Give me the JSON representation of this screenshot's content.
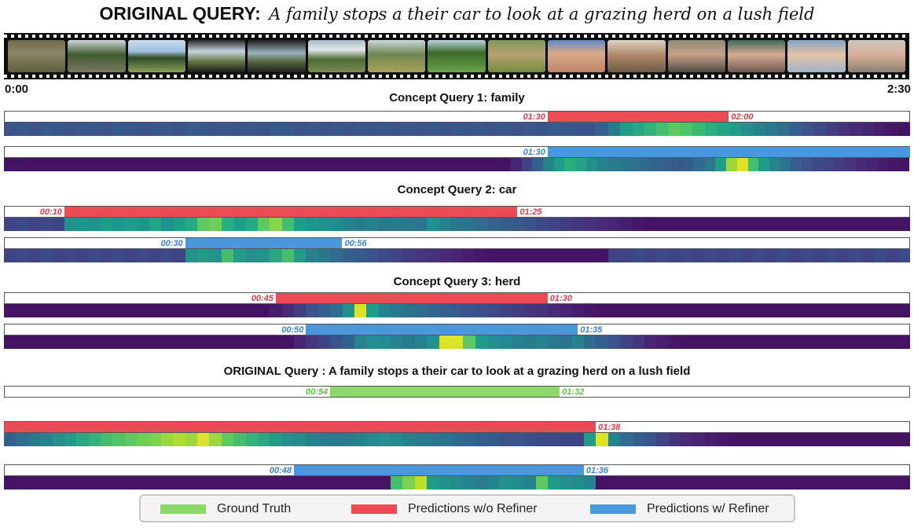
{
  "header": {
    "label": "ORIGINAL QUERY:",
    "query": "A family stops a their car to look at a grazing herd on a lush field",
    "start_time": "0:00",
    "end_time": "2:30"
  },
  "filmstrip": {
    "frames": [
      {
        "scene": "zoo-gate"
      },
      {
        "scene": "trees-road"
      },
      {
        "scene": "grazing-field"
      },
      {
        "scene": "car-interior"
      },
      {
        "scene": "car-window"
      },
      {
        "scene": "window-view"
      },
      {
        "scene": "field-animals"
      },
      {
        "scene": "park-trees"
      },
      {
        "scene": "giraffe-field"
      },
      {
        "scene": "boy-closeup"
      },
      {
        "scene": "family-table"
      },
      {
        "scene": "child-eating"
      },
      {
        "scene": "girl-eating"
      },
      {
        "scene": "boy-outdoors"
      },
      {
        "scene": "child-face"
      }
    ]
  },
  "colors": {
    "ground_truth": "#8cd86a",
    "pred_wo_refiner": "#eb4b55",
    "pred_w_refiner": "#4b97dd",
    "gt_text": "#5fbf3f",
    "wo_text": "#e03a44",
    "w_text": "#3b82d0"
  },
  "sections": [
    {
      "title": "Concept Query 1: family",
      "rows": [
        {
          "kind": "wo",
          "start": "01:30",
          "end": "02:00",
          "start_label": "01:30",
          "end_label": "02:00",
          "heat": [
            0.25,
            0.27,
            0.26,
            0.28,
            0.27,
            0.26,
            0.27,
            0.27,
            0.26,
            0.28,
            0.27,
            0.26,
            0.27,
            0.27,
            0.26,
            0.28,
            0.27,
            0.26,
            0.27,
            0.26,
            0.27,
            0.26,
            0.28,
            0.27,
            0.26,
            0.27,
            0.26,
            0.27,
            0.26,
            0.27,
            0.26,
            0.27,
            0.26,
            0.27,
            0.26,
            0.27,
            0.26,
            0.27,
            0.26,
            0.27,
            0.26,
            0.27,
            0.26,
            0.27,
            0.26,
            0.28,
            0.27,
            0.26,
            0.25,
            0.3,
            0.42,
            0.55,
            0.6,
            0.65,
            0.7,
            0.75,
            0.72,
            0.68,
            0.62,
            0.58,
            0.55,
            0.5,
            0.45,
            0.4,
            0.35,
            0.3,
            0.25,
            0.22,
            0.18,
            0.15,
            0.12,
            0.1,
            0.08,
            0.06,
            0.05
          ]
        },
        {
          "kind": "w",
          "start": "01:30",
          "end": "02:30",
          "start_label": "01:30",
          "heat": [
            0.05,
            0.05,
            0.05,
            0.05,
            0.05,
            0.05,
            0.05,
            0.05,
            0.05,
            0.05,
            0.05,
            0.05,
            0.05,
            0.05,
            0.05,
            0.05,
            0.05,
            0.05,
            0.05,
            0.05,
            0.05,
            0.05,
            0.05,
            0.05,
            0.05,
            0.05,
            0.05,
            0.05,
            0.05,
            0.05,
            0.05,
            0.05,
            0.05,
            0.05,
            0.05,
            0.05,
            0.05,
            0.05,
            0.05,
            0.05,
            0.05,
            0.05,
            0.05,
            0.05,
            0.05,
            0.05,
            0.05,
            0.1,
            0.2,
            0.3,
            0.45,
            0.55,
            0.62,
            0.58,
            0.5,
            0.45,
            0.42,
            0.4,
            0.38,
            0.35,
            0.32,
            0.3,
            0.28,
            0.3,
            0.35,
            0.4,
            0.55,
            0.85,
            0.95,
            0.7,
            0.55,
            0.45,
            0.38,
            0.3,
            0.25,
            0.22,
            0.2,
            0.18,
            0.15,
            0.12,
            0.1,
            0.08,
            0.06,
            0.05
          ]
        }
      ]
    },
    {
      "title": "Concept Query 2: car",
      "rows": [
        {
          "kind": "wo",
          "start": "00:10",
          "end": "01:25",
          "start_label": "00:10",
          "end_label": "01:25",
          "heat": [
            0.2,
            0.22,
            0.2,
            0.22,
            0.2,
            0.5,
            0.52,
            0.5,
            0.55,
            0.52,
            0.55,
            0.52,
            0.58,
            0.5,
            0.55,
            0.6,
            0.75,
            0.78,
            0.62,
            0.55,
            0.6,
            0.75,
            0.82,
            0.7,
            0.55,
            0.52,
            0.5,
            0.48,
            0.45,
            0.42,
            0.45,
            0.4,
            0.42,
            0.4,
            0.38,
            0.5,
            0.45,
            0.4,
            0.38,
            0.35,
            0.32,
            0.3,
            0.28,
            0.25,
            0.22,
            0.2,
            0.18,
            0.16,
            0.14,
            0.12,
            0.1,
            0.08,
            0.06,
            0.05,
            0.05,
            0.05,
            0.05,
            0.05,
            0.05,
            0.05,
            0.05,
            0.05,
            0.05,
            0.05,
            0.05,
            0.05,
            0.05,
            0.05,
            0.05,
            0.05,
            0.05,
            0.05,
            0.05,
            0.05,
            0.05
          ]
        },
        {
          "kind": "w",
          "start": "00:30",
          "end": "00:56",
          "start_label": "00:30",
          "end_label": "00:56",
          "heat": [
            0.2,
            0.22,
            0.2,
            0.22,
            0.2,
            0.22,
            0.2,
            0.22,
            0.2,
            0.22,
            0.2,
            0.22,
            0.2,
            0.22,
            0.2,
            0.5,
            0.55,
            0.52,
            0.7,
            0.55,
            0.5,
            0.52,
            0.6,
            0.7,
            0.55,
            0.45,
            0.4,
            0.35,
            0.3,
            0.28,
            0.25,
            0.22,
            0.2,
            0.18,
            0.16,
            0.14,
            0.12,
            0.1,
            0.08,
            0.06,
            0.05,
            0.05,
            0.05,
            0.05,
            0.05,
            0.05,
            0.05,
            0.05,
            0.05,
            0.05,
            0.2,
            0.2,
            0.22,
            0.2,
            0.22,
            0.2,
            0.22,
            0.2,
            0.22,
            0.2,
            0.22,
            0.2,
            0.22,
            0.2,
            0.22,
            0.2,
            0.22,
            0.2,
            0.22,
            0.2,
            0.22,
            0.2,
            0.22,
            0.2,
            0.22
          ]
        }
      ]
    },
    {
      "title": "Concept Query 3: herd",
      "rows": [
        {
          "kind": "wo",
          "start": "00:45",
          "end": "01:30",
          "start_label": "00:45",
          "end_label": "01:30",
          "heat": [
            0.05,
            0.05,
            0.05,
            0.05,
            0.05,
            0.05,
            0.05,
            0.05,
            0.05,
            0.05,
            0.05,
            0.05,
            0.05,
            0.05,
            0.05,
            0.05,
            0.05,
            0.05,
            0.05,
            0.05,
            0.05,
            0.05,
            0.08,
            0.12,
            0.18,
            0.25,
            0.3,
            0.35,
            0.5,
            0.95,
            0.55,
            0.45,
            0.4,
            0.38,
            0.35,
            0.32,
            0.3,
            0.28,
            0.26,
            0.24,
            0.22,
            0.2,
            0.18,
            0.16,
            0.14,
            0.12,
            0.1,
            0.08,
            0.06,
            0.05,
            0.05,
            0.05,
            0.05,
            0.05,
            0.05,
            0.05,
            0.05,
            0.05,
            0.05,
            0.05,
            0.05,
            0.05,
            0.05,
            0.05,
            0.05,
            0.05,
            0.05,
            0.05,
            0.05,
            0.05,
            0.05,
            0.05,
            0.05,
            0.05,
            0.05
          ]
        },
        {
          "kind": "w",
          "start": "00:50",
          "end": "01:35",
          "start_label": "00:50",
          "end_label": "01:35",
          "heat": [
            0.05,
            0.05,
            0.05,
            0.05,
            0.05,
            0.05,
            0.05,
            0.05,
            0.05,
            0.05,
            0.05,
            0.05,
            0.05,
            0.05,
            0.05,
            0.05,
            0.05,
            0.05,
            0.05,
            0.05,
            0.05,
            0.05,
            0.05,
            0.05,
            0.1,
            0.15,
            0.2,
            0.25,
            0.3,
            0.45,
            0.5,
            0.48,
            0.45,
            0.42,
            0.45,
            0.5,
            0.95,
            0.95,
            0.75,
            0.55,
            0.5,
            0.48,
            0.45,
            0.42,
            0.45,
            0.4,
            0.38,
            0.45,
            0.35,
            0.3,
            0.25,
            0.2,
            0.15,
            0.1,
            0.08,
            0.06,
            0.05,
            0.05,
            0.05,
            0.05,
            0.05,
            0.05,
            0.05,
            0.05,
            0.05,
            0.05,
            0.05,
            0.05,
            0.05,
            0.05,
            0.05,
            0.05,
            0.05,
            0.05,
            0.05
          ]
        }
      ]
    },
    {
      "title": "ORIGINAL Query : A family stops a their car to look at a grazing herd on a lush field",
      "rows": [
        {
          "kind": "gt",
          "start": "00:54",
          "end": "01:32",
          "start_label": "00:54",
          "end_label": "01:32",
          "heat": null
        },
        {
          "kind": "wo",
          "start": "00:00",
          "end": "01:38",
          "end_label": "01:38",
          "heat": [
            0.3,
            0.35,
            0.4,
            0.45,
            0.5,
            0.55,
            0.6,
            0.65,
            0.7,
            0.72,
            0.75,
            0.78,
            0.8,
            0.85,
            0.88,
            0.85,
            0.95,
            0.85,
            0.75,
            0.7,
            0.65,
            0.6,
            0.55,
            0.5,
            0.48,
            0.45,
            0.42,
            0.4,
            0.42,
            0.45,
            0.48,
            0.5,
            0.48,
            0.45,
            0.42,
            0.4,
            0.38,
            0.35,
            0.32,
            0.3,
            0.28,
            0.26,
            0.25,
            0.24,
            0.23,
            0.22,
            0.21,
            0.2,
            0.55,
            0.95,
            0.45,
            0.35,
            0.3,
            0.25,
            0.2,
            0.15,
            0.12,
            0.1,
            0.08,
            0.06,
            0.05,
            0.05,
            0.05,
            0.05,
            0.05,
            0.05,
            0.05,
            0.05,
            0.05,
            0.05,
            0.05,
            0.05,
            0.05,
            0.05,
            0.05
          ]
        },
        {
          "kind": "w",
          "start": "00:48",
          "end": "01:36",
          "start_label": "00:48",
          "end_label": "01:36",
          "heat": [
            0.05,
            0.05,
            0.05,
            0.05,
            0.05,
            0.05,
            0.05,
            0.05,
            0.05,
            0.05,
            0.05,
            0.05,
            0.05,
            0.05,
            0.05,
            0.05,
            0.05,
            0.05,
            0.05,
            0.05,
            0.05,
            0.05,
            0.05,
            0.05,
            0.05,
            0.05,
            0.05,
            0.05,
            0.05,
            0.05,
            0.05,
            0.05,
            0.7,
            0.8,
            0.9,
            0.55,
            0.5,
            0.48,
            0.45,
            0.42,
            0.45,
            0.5,
            0.48,
            0.45,
            0.75,
            0.55,
            0.5,
            0.48,
            0.45,
            0.05,
            0.05,
            0.05,
            0.05,
            0.05,
            0.05,
            0.05,
            0.05,
            0.05,
            0.05,
            0.05,
            0.05,
            0.05,
            0.05,
            0.05,
            0.05,
            0.05,
            0.05,
            0.05,
            0.05,
            0.05,
            0.05,
            0.05,
            0.05,
            0.05,
            0.05
          ]
        }
      ]
    }
  ],
  "legend": [
    {
      "label": "Ground Truth",
      "kind": "gt"
    },
    {
      "label": "Predictions w/o Refiner",
      "kind": "wo"
    },
    {
      "label": "Predictions w/ Refiner",
      "kind": "w"
    }
  ]
}
